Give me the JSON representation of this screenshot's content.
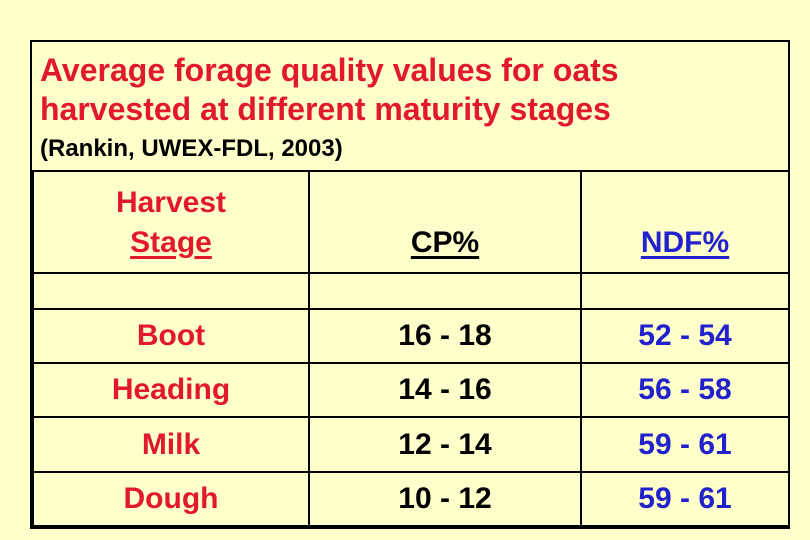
{
  "slide": {
    "title_lines": [
      "Average forage quality values for oats",
      "harvested at different maturity stages"
    ],
    "subtitle": "(Rankin, UWEX-FDL, 2003)"
  },
  "table": {
    "header": {
      "stage_line1": "Harvest",
      "stage_line2": "Stage",
      "cp": "CP%",
      "ndf": "NDF%"
    },
    "rows": [
      {
        "stage": "Boot",
        "cp": "16 - 18",
        "ndf": "52 - 54"
      },
      {
        "stage": "Heading",
        "cp": "14 - 16",
        "ndf": "56 - 58"
      },
      {
        "stage": "Milk",
        "cp": "12 - 14",
        "ndf": "59 - 61"
      },
      {
        "stage": "Dough",
        "cp": "10 - 12",
        "ndf": "59 - 61"
      }
    ]
  },
  "chart_data": {
    "type": "table",
    "title": "Average forage quality values for oats harvested at different maturity stages",
    "source": "(Rankin, UWEX-FDL, 2003)",
    "columns": [
      "Harvest Stage",
      "CP%",
      "NDF%"
    ],
    "rows": [
      [
        "Boot",
        "16 - 18",
        "52 - 54"
      ],
      [
        "Heading",
        "14 - 16",
        "56 - 58"
      ],
      [
        "Milk",
        "12 - 14",
        "59 - 61"
      ],
      [
        "Dough",
        "10 - 12",
        "59 - 61"
      ]
    ]
  },
  "colors": {
    "background": "#FFFFCC",
    "title_red": "#E2182C",
    "value_blue": "#2222CC",
    "text_black": "#000000",
    "border": "#000000"
  }
}
